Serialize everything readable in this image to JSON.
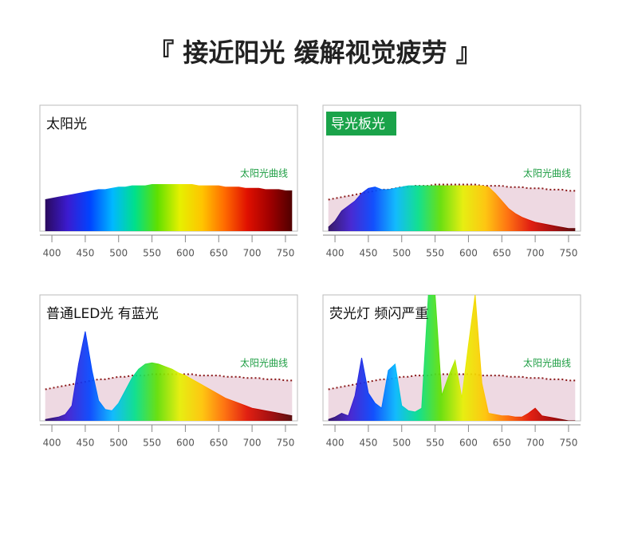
{
  "title": "『 接近阳光 缓解视觉疲劳 』",
  "chart_data": [
    {
      "type": "area",
      "title": "太阳光",
      "x": [
        390,
        400,
        410,
        420,
        430,
        440,
        450,
        460,
        470,
        480,
        490,
        500,
        510,
        520,
        530,
        540,
        550,
        560,
        570,
        580,
        590,
        600,
        610,
        620,
        630,
        640,
        650,
        660,
        670,
        680,
        690,
        700,
        710,
        720,
        730,
        740,
        750,
        760
      ],
      "xlim": [
        382,
        768
      ],
      "xticks": [
        400,
        450,
        500,
        550,
        600,
        650,
        700,
        750
      ],
      "ylim": [
        0,
        100
      ],
      "series": [
        {
          "name": "太阳光曲线",
          "color": [
            "#2a0a5e",
            "#3b1bd0",
            "#0044ff",
            "#00b8ff",
            "#00e08a",
            "#60e000",
            "#e6f000",
            "#ffc400",
            "#ff6a00",
            "#e01000",
            "#a00000",
            "#500000"
          ],
          "values": [
            25,
            26,
            27,
            28,
            29,
            30,
            31,
            32,
            33,
            33,
            34,
            35,
            35,
            36,
            36,
            36,
            37,
            37,
            37,
            37,
            37,
            37,
            37,
            36,
            36,
            36,
            36,
            35,
            35,
            35,
            34,
            34,
            34,
            33,
            33,
            33,
            32,
            32
          ]
        }
      ]
    },
    {
      "type": "area",
      "title": "导光板光",
      "title_background": "#1aa34a",
      "x": [
        390,
        400,
        410,
        420,
        430,
        440,
        450,
        460,
        470,
        480,
        490,
        500,
        510,
        520,
        530,
        540,
        550,
        560,
        570,
        580,
        590,
        600,
        610,
        620,
        630,
        640,
        650,
        660,
        670,
        680,
        690,
        700,
        710,
        720,
        730,
        740,
        750,
        760
      ],
      "xlim": [
        382,
        768
      ],
      "xticks": [
        400,
        450,
        500,
        550,
        600,
        650,
        700,
        750
      ],
      "ylim": [
        0,
        100
      ],
      "series": [
        {
          "name": "太阳光曲线",
          "color": "#8b1a1a",
          "values": [
            25,
            26,
            27,
            28,
            29,
            30,
            31,
            32,
            33,
            33,
            34,
            35,
            35,
            36,
            36,
            36,
            37,
            37,
            37,
            37,
            37,
            37,
            37,
            36,
            36,
            36,
            36,
            35,
            35,
            35,
            34,
            34,
            34,
            33,
            33,
            33,
            32,
            32
          ]
        },
        {
          "color": [
            "#2a0a5e",
            "#3b1bd0",
            "#0044ff",
            "#00b8ff",
            "#00e08a",
            "#60e000",
            "#e6f000",
            "#ffc400",
            "#ff6a00",
            "#e01000",
            "#a00000",
            "#500000"
          ],
          "values": [
            3,
            8,
            16,
            20,
            24,
            30,
            34,
            35,
            33,
            33,
            34,
            35,
            36,
            36,
            36,
            36,
            36,
            36,
            36,
            36,
            36,
            36,
            36,
            36,
            35,
            30,
            24,
            18,
            14,
            11,
            9,
            7,
            6,
            5,
            4,
            3,
            2,
            2
          ]
        }
      ]
    },
    {
      "type": "area",
      "title": "普通LED光 有蓝光",
      "x": [
        390,
        400,
        410,
        420,
        430,
        440,
        450,
        460,
        470,
        480,
        490,
        500,
        510,
        520,
        530,
        540,
        550,
        560,
        570,
        580,
        590,
        600,
        610,
        620,
        630,
        640,
        650,
        660,
        670,
        680,
        690,
        700,
        710,
        720,
        730,
        740,
        750,
        760
      ],
      "xlim": [
        382,
        768
      ],
      "xticks": [
        400,
        450,
        500,
        550,
        600,
        650,
        700,
        750
      ],
      "ylim": [
        0,
        100
      ],
      "series": [
        {
          "name": "太阳光曲线",
          "color": "#8b1a1a",
          "values": [
            25,
            26,
            27,
            28,
            29,
            30,
            31,
            32,
            33,
            33,
            34,
            35,
            35,
            36,
            36,
            36,
            37,
            37,
            37,
            37,
            37,
            37,
            37,
            36,
            36,
            36,
            36,
            35,
            35,
            35,
            34,
            34,
            34,
            33,
            33,
            33,
            32,
            32
          ]
        },
        {
          "color": [
            "#2a0a5e",
            "#3b1bd0",
            "#0044ff",
            "#00b8ff",
            "#00e08a",
            "#60e000",
            "#e6f000",
            "#ffc400",
            "#ff6a00",
            "#e01000",
            "#a00000",
            "#500000"
          ],
          "values": [
            1,
            2,
            3,
            5,
            12,
            45,
            71,
            40,
            16,
            9,
            8,
            14,
            24,
            34,
            41,
            45,
            46,
            45,
            43,
            41,
            38,
            36,
            33,
            30,
            27,
            24,
            21,
            18,
            16,
            14,
            12,
            10,
            9,
            8,
            7,
            6,
            5,
            4
          ]
        }
      ]
    },
    {
      "type": "area",
      "title": "荧光灯 频闪严重",
      "x": [
        390,
        400,
        410,
        420,
        430,
        440,
        450,
        460,
        470,
        480,
        490,
        500,
        510,
        520,
        530,
        540,
        550,
        560,
        570,
        580,
        590,
        600,
        610,
        620,
        630,
        640,
        650,
        660,
        670,
        680,
        690,
        700,
        710,
        720,
        730,
        740,
        750,
        760
      ],
      "xlim": [
        382,
        768
      ],
      "xticks": [
        400,
        450,
        500,
        550,
        600,
        650,
        700,
        750
      ],
      "ylim": [
        0,
        100
      ],
      "series": [
        {
          "name": "太阳光曲线",
          "color": "#8b1a1a",
          "values": [
            25,
            26,
            27,
            28,
            29,
            30,
            31,
            32,
            33,
            33,
            34,
            35,
            35,
            36,
            36,
            36,
            37,
            37,
            37,
            37,
            37,
            37,
            37,
            36,
            36,
            36,
            36,
            35,
            35,
            35,
            34,
            34,
            34,
            33,
            33,
            33,
            32,
            32
          ]
        },
        {
          "color": [
            "#2a0a5e",
            "#3b1bd0",
            "#0044ff",
            "#00b8ff",
            "#00e08a",
            "#60e000",
            "#e6f000",
            "#ffc400",
            "#ff6a00",
            "#e01000",
            "#a00000",
            "#500000"
          ],
          "values": [
            1,
            3,
            6,
            4,
            20,
            50,
            22,
            14,
            10,
            40,
            45,
            12,
            8,
            7,
            10,
            100,
            100,
            20,
            35,
            48,
            18,
            60,
            100,
            30,
            6,
            5,
            4,
            4,
            3,
            3,
            6,
            10,
            4,
            3,
            2,
            1,
            0,
            0
          ]
        }
      ]
    }
  ]
}
